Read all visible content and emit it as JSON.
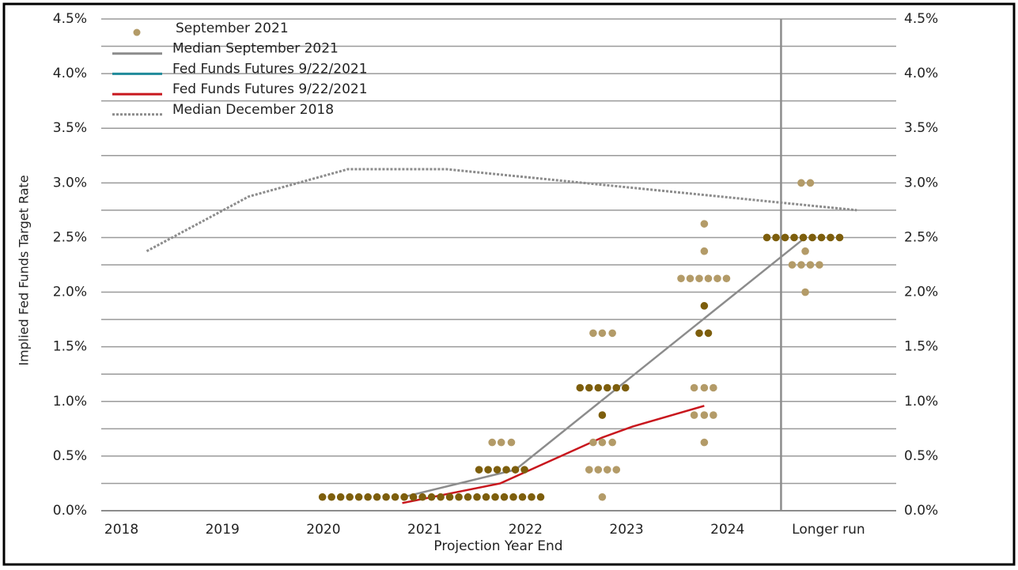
{
  "chart_data": {
    "type": "dot_plot",
    "x_label": "Projection Year End",
    "y_label": "Implied Fed Funds Target Rate",
    "xlim": [
      2017.8,
      2025.67
    ],
    "xticks": [
      2018,
      2019,
      2020,
      2021,
      2022,
      2023,
      2024,
      {
        "value": 2025,
        "label": "Longer run"
      }
    ],
    "ylim": [
      0,
      4.5
    ],
    "yticks": [
      {
        "value": 0,
        "label": "0.0%"
      },
      {
        "value": 0.5,
        "label": "0.5%"
      },
      {
        "value": 1,
        "label": "1.0%"
      },
      {
        "value": 1.5,
        "label": "1.5%"
      },
      {
        "value": 2,
        "label": "2.0%"
      },
      {
        "value": 2.5,
        "label": "2.5%"
      },
      {
        "value": 3,
        "label": "3.0%"
      },
      {
        "value": 3.5,
        "label": "3.5%"
      },
      {
        "value": 4,
        "label": "4.0%"
      },
      {
        "value": 4.5,
        "label": "4.5%"
      }
    ],
    "minor_yticks": [
      0.25,
      0.75,
      1.25,
      1.75,
      2.25,
      2.75,
      3.25,
      3.75,
      4.25
    ],
    "grid": true,
    "right_axis": true,
    "separator_x": 2024.53,
    "legend": "upper left",
    "series": [
      {
        "name": "September 2021",
        "type": "scatter",
        "color": "#b39b68",
        "x": [
          2021.67,
          2021.76,
          2021.86,
          2022.67,
          2022.76,
          2022.86,
          2022.67,
          2022.76,
          2022.86,
          2022.63,
          2022.72,
          2022.81,
          2022.9,
          2022.76,
          2023.77,
          2023.77,
          2023.54,
          2023.63,
          2023.72,
          2023.81,
          2023.9,
          2023.99,
          2023.67,
          2023.77,
          2023.86,
          2023.67,
          2023.77,
          2023.86,
          2023.77,
          2024.73,
          2024.82,
          2024.77,
          2024.64,
          2024.73,
          2024.82,
          2024.91,
          2024.77
        ],
        "values": [
          0.625,
          0.625,
          0.625,
          1.625,
          1.625,
          1.625,
          0.625,
          0.625,
          0.625,
          0.375,
          0.375,
          0.375,
          0.375,
          0.125,
          2.625,
          2.375,
          2.125,
          2.125,
          2.125,
          2.125,
          2.125,
          2.125,
          1.125,
          1.125,
          1.125,
          0.875,
          0.875,
          0.875,
          0.625,
          3.0,
          3.0,
          2.375,
          2.25,
          2.25,
          2.25,
          2.25,
          2.0
        ]
      },
      {
        "name": "Median September 2021",
        "type": "line",
        "color": "#8c8c8c",
        "dash": "solid",
        "x": [
          2020.79,
          2021.9,
          2024.77
        ],
        "values": [
          0.125,
          0.375,
          2.5
        ]
      },
      {
        "name": "Fed Funds Futures 9/22/2021",
        "type": "line",
        "color": "#1f8a9a",
        "dash": "solid",
        "x": [],
        "values": []
      },
      {
        "name": "Fed Funds Futures 9/22/2021",
        "type": "line",
        "color": "#c8161d",
        "dash": "solid",
        "x": [
          2020.78,
          2021.75,
          2022.76,
          2023.06,
          2023.77
        ],
        "values": [
          0.07,
          0.25,
          0.67,
          0.77,
          0.96
        ]
      },
      {
        "name": "Median December 2018",
        "type": "line",
        "color": "#8c8c8c",
        "dash": "dotted",
        "x": [
          2018.25,
          2019.26,
          2020.24,
          2021.22,
          2025.28
        ],
        "values": [
          2.375,
          2.875,
          3.125,
          3.125,
          2.75
        ]
      },
      {
        "type": "scatter",
        "color": "#7d5e0c",
        "x": [
          2019.99,
          2020.08,
          2020.17,
          2020.26,
          2020.35,
          2020.44,
          2020.53,
          2020.62,
          2020.71,
          2020.8,
          2020.89,
          2020.98,
          2021.07,
          2021.16,
          2021.25,
          2021.34,
          2021.43,
          2021.52,
          2021.61,
          2021.7,
          2021.79,
          2021.88,
          2021.97,
          2022.06,
          2022.15,
          2021.54,
          2021.63,
          2021.72,
          2021.81,
          2021.9,
          2021.99,
          2022.54,
          2022.63,
          2022.72,
          2022.81,
          2022.9,
          2022.99,
          2022.76,
          2023.77,
          2023.72,
          2023.81,
          2024.39,
          2024.48,
          2024.57,
          2024.66,
          2024.75,
          2024.84,
          2024.93,
          2025.02,
          2025.11
        ],
        "values": [
          0.125,
          0.125,
          0.125,
          0.125,
          0.125,
          0.125,
          0.125,
          0.125,
          0.125,
          0.125,
          0.125,
          0.125,
          0.125,
          0.125,
          0.125,
          0.125,
          0.125,
          0.125,
          0.125,
          0.125,
          0.125,
          0.125,
          0.125,
          0.125,
          0.125,
          0.375,
          0.375,
          0.375,
          0.375,
          0.375,
          0.375,
          1.125,
          1.125,
          1.125,
          1.125,
          1.125,
          1.125,
          0.875,
          1.875,
          1.625,
          1.625,
          2.5,
          2.5,
          2.5,
          2.5,
          2.5,
          2.5,
          2.5,
          2.5,
          2.5
        ]
      }
    ]
  }
}
